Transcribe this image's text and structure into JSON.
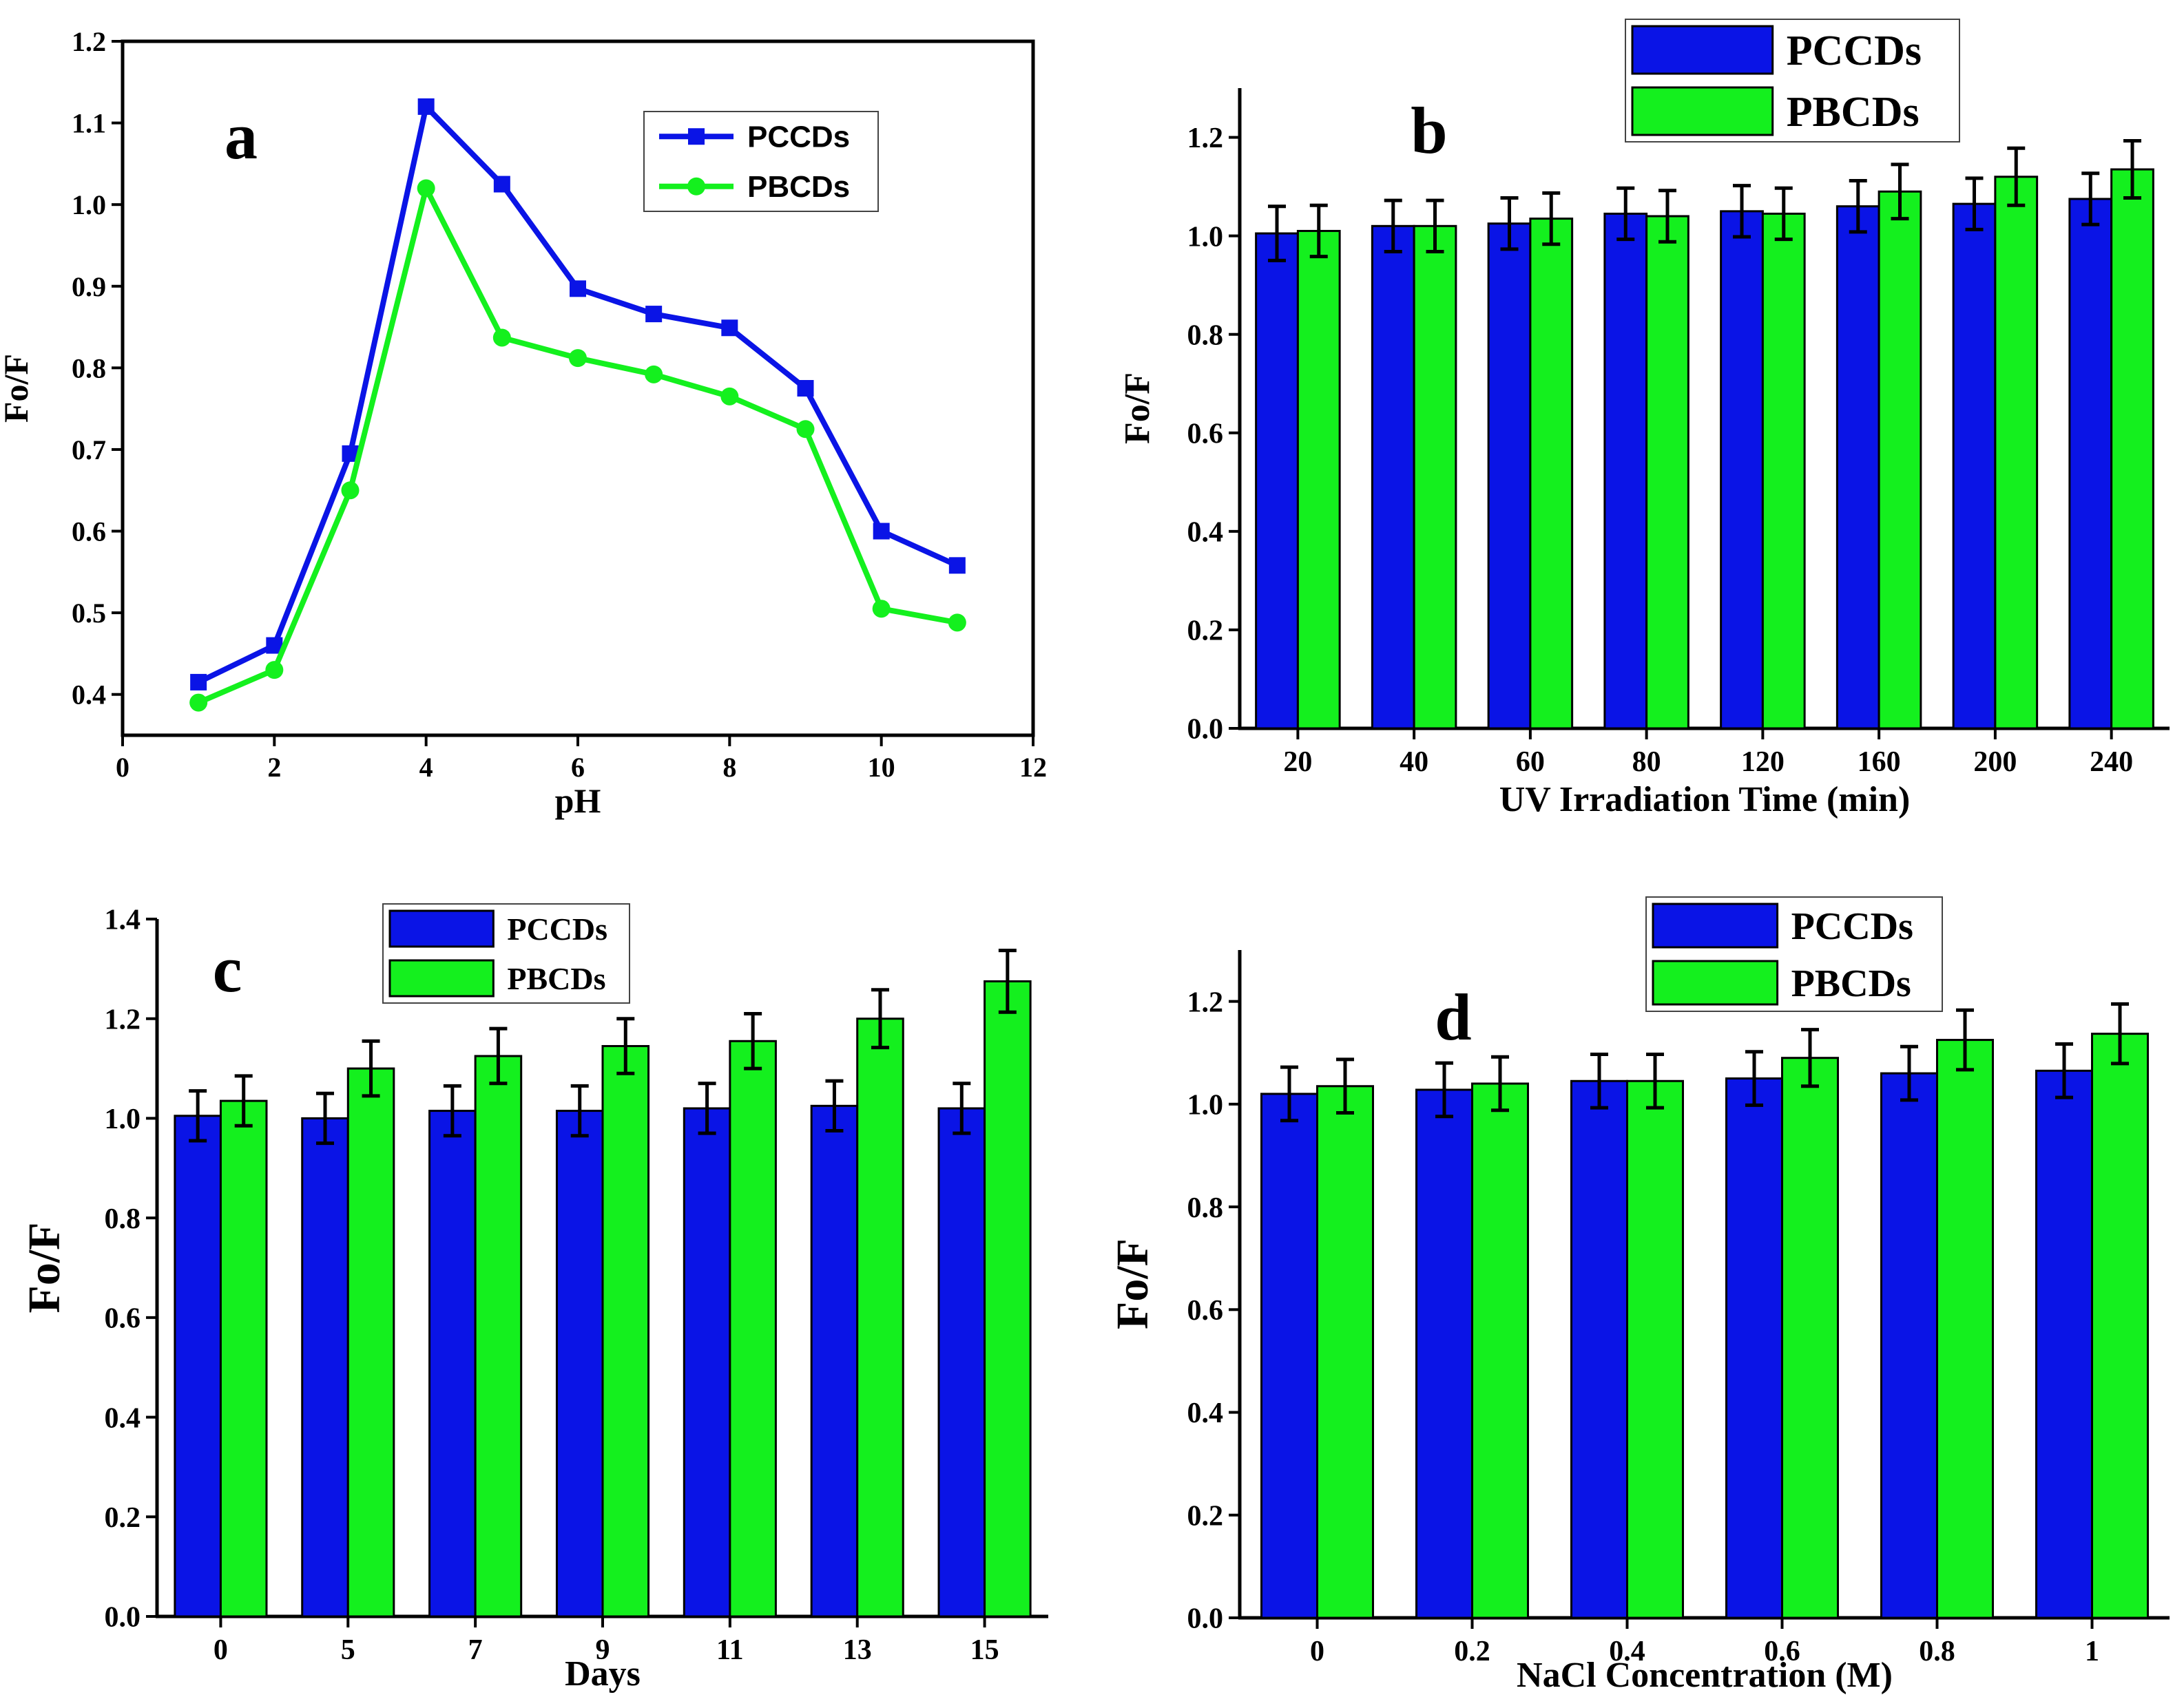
{
  "figure": {
    "colors": {
      "pccds": "#0a14e6",
      "pbcds": "#14f01e",
      "axis": "#000000"
    }
  },
  "chart_data": [
    {
      "id": "a",
      "type": "line",
      "panel_label": "a",
      "xlabel": "pH",
      "ylabel": "Fo/F",
      "xlim": [
        0,
        12
      ],
      "ylim": [
        0.35,
        1.2
      ],
      "xticks": [
        0,
        2,
        4,
        6,
        8,
        10,
        12
      ],
      "yticks": [
        0.4,
        0.5,
        0.6,
        0.7,
        0.8,
        0.9,
        1.0,
        1.1,
        1.2
      ],
      "xtick_labels": [
        "0",
        "2",
        "4",
        "6",
        "8",
        "10",
        "12"
      ],
      "ytick_labels": [
        "0.4",
        "0.5",
        "0.6",
        "0.7",
        "0.8",
        "0.9",
        "1.0",
        "1.1",
        "1.2"
      ],
      "x": [
        1,
        2,
        3,
        4,
        5,
        6,
        7,
        8,
        9,
        10,
        11
      ],
      "series": [
        {
          "name": "PCCDs",
          "marker": "square",
          "values": [
            0.415,
            0.46,
            0.695,
            1.12,
            1.025,
            0.897,
            0.866,
            0.849,
            0.775,
            0.6,
            0.558
          ]
        },
        {
          "name": "PBCDs",
          "marker": "circle",
          "values": [
            0.39,
            0.43,
            0.65,
            1.02,
            0.837,
            0.812,
            0.792,
            0.765,
            0.725,
            0.505,
            0.488
          ]
        }
      ],
      "legend": [
        "PCCDs",
        "PBCDs"
      ],
      "legend_position": "top-right"
    },
    {
      "id": "b",
      "type": "bar",
      "panel_label": "b",
      "xlabel": "UV Irradiation Time (min)",
      "ylabel": "Fo/F",
      "ylim": [
        0,
        1.3
      ],
      "yticks": [
        0.0,
        0.2,
        0.4,
        0.6,
        0.8,
        1.0,
        1.2
      ],
      "ytick_labels": [
        "0.0",
        "0.2",
        "0.4",
        "0.6",
        "0.8",
        "1.0",
        "1.2"
      ],
      "categories": [
        "20",
        "40",
        "60",
        "80",
        "120",
        "160",
        "200",
        "240"
      ],
      "series": [
        {
          "name": "PCCDs",
          "values": [
            1.005,
            1.02,
            1.025,
            1.045,
            1.05,
            1.06,
            1.065,
            1.075
          ],
          "errors": [
            0.055,
            0.052,
            0.052,
            0.052,
            0.052,
            0.052,
            0.052,
            0.052
          ]
        },
        {
          "name": "PBCDs",
          "values": [
            1.01,
            1.02,
            1.035,
            1.04,
            1.045,
            1.09,
            1.12,
            1.135
          ],
          "errors": [
            0.052,
            0.052,
            0.052,
            0.052,
            0.052,
            0.055,
            0.058,
            0.058
          ]
        }
      ],
      "legend": [
        "PCCDs",
        "PBCDs"
      ],
      "legend_position": "top-right"
    },
    {
      "id": "c",
      "type": "bar",
      "panel_label": "c",
      "xlabel": "Days",
      "ylabel": "Fo/F",
      "ylim": [
        0,
        1.4
      ],
      "yticks": [
        0.0,
        0.2,
        0.4,
        0.6,
        0.8,
        1.0,
        1.2,
        1.4
      ],
      "ytick_labels": [
        "0.0",
        "0.2",
        "0.4",
        "0.6",
        "0.8",
        "1.0",
        "1.2",
        "1.4"
      ],
      "categories": [
        "0",
        "5",
        "7",
        "9",
        "11",
        "13",
        "15"
      ],
      "series": [
        {
          "name": "PCCDs",
          "values": [
            1.005,
            1.0,
            1.015,
            1.015,
            1.02,
            1.025,
            1.02
          ],
          "errors": [
            0.05,
            0.05,
            0.05,
            0.05,
            0.05,
            0.05,
            0.05
          ]
        },
        {
          "name": "PBCDs",
          "values": [
            1.035,
            1.1,
            1.125,
            1.145,
            1.155,
            1.2,
            1.275
          ],
          "errors": [
            0.05,
            0.055,
            0.055,
            0.055,
            0.055,
            0.058,
            0.062
          ]
        }
      ],
      "legend": [
        "PCCDs",
        "PBCDs"
      ],
      "legend_position": "top-center"
    },
    {
      "id": "d",
      "type": "bar",
      "panel_label": "d",
      "xlabel": "NaCl Concentration (M)",
      "ylabel": "Fo/F",
      "ylim": [
        0,
        1.3
      ],
      "yticks": [
        0.0,
        0.2,
        0.4,
        0.6,
        0.8,
        1.0,
        1.2
      ],
      "ytick_labels": [
        "0.0",
        "0.2",
        "0.4",
        "0.6",
        "0.8",
        "1.0",
        "1.2"
      ],
      "categories": [
        "0",
        "0.2",
        "0.4",
        "0.6",
        "0.8",
        "1"
      ],
      "series": [
        {
          "name": "PCCDs",
          "values": [
            1.02,
            1.028,
            1.045,
            1.05,
            1.06,
            1.065
          ],
          "errors": [
            0.052,
            0.052,
            0.052,
            0.052,
            0.052,
            0.052
          ]
        },
        {
          "name": "PBCDs",
          "values": [
            1.035,
            1.04,
            1.045,
            1.09,
            1.125,
            1.137
          ],
          "errors": [
            0.052,
            0.052,
            0.052,
            0.055,
            0.058,
            0.058
          ]
        }
      ],
      "legend": [
        "PCCDs",
        "PBCDs"
      ],
      "legend_position": "top-right"
    }
  ]
}
